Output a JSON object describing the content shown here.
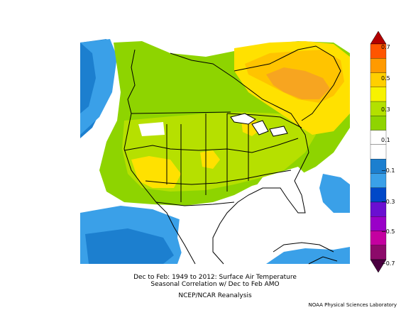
{
  "title": {
    "line1": "Dec to Feb: 1949 to 2012: Surface Air Temperature",
    "line2": "Seasonal Correlation w/ Dec to Feb AMO",
    "line3": "NCEP/NCAR Reanalysis"
  },
  "credit": "NOAA Physical Sciences Laboratory",
  "colorbar": {
    "labels": [
      "0.7",
      "0.5",
      "0.3",
      "0.1",
      "−0.1",
      "−0.3",
      "−0.5",
      "−0.7"
    ],
    "colors": [
      "#ff5500",
      "#ff9a00",
      "#ffcf00",
      "#f7f200",
      "#b3e000",
      "#8fd400",
      "#ffffff",
      "#ffffff",
      "#1c7fcf",
      "#3aa0e8",
      "#0048c8",
      "#6a0fd1",
      "#9a00c8",
      "#c400a0",
      "#8c0a6a"
    ],
    "top_arrow_color": "#b30000",
    "bottom_arrow_color": "#4a0040"
  },
  "map": {
    "region": "North America",
    "variable": "Surface Air Temperature correlation",
    "background_color": "#ffffff",
    "palette": {
      "strong_positive": "#f7a520",
      "orange": "#ffc400",
      "yellow": "#ffe100",
      "light_green": "#b6e000",
      "green": "#8ed400",
      "neutral": "#ffffff",
      "light_blue": "#3aa0e8",
      "blue": "#1c7fcf"
    }
  }
}
